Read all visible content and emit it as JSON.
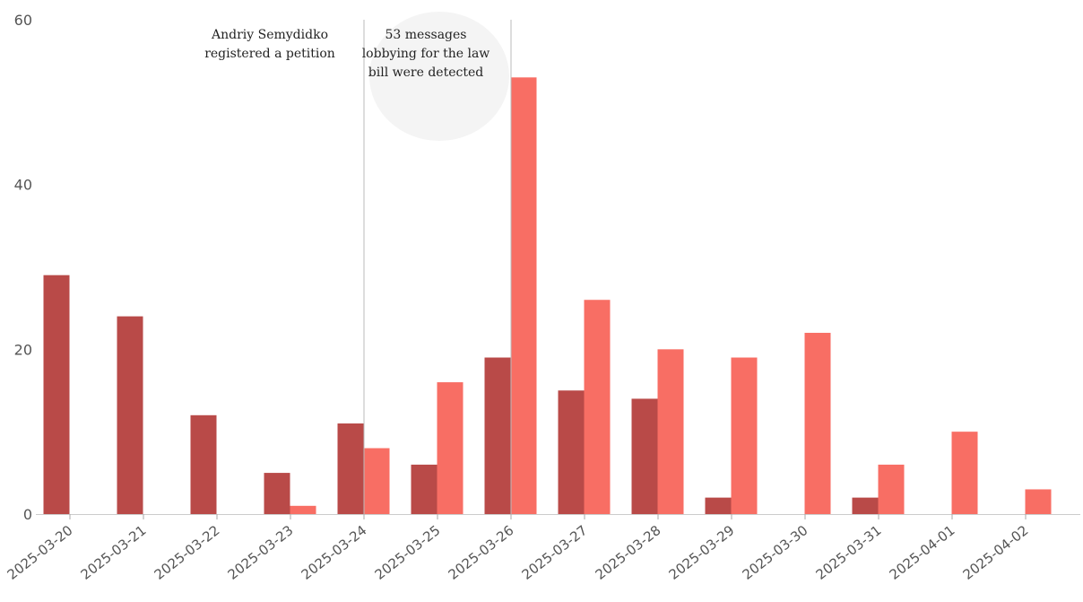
{
  "chart_data": {
    "type": "bar",
    "title": "",
    "xlabel": "",
    "ylabel": "",
    "ylim": [
      0,
      60
    ],
    "yticks": [
      0,
      20,
      40,
      60
    ],
    "grid": false,
    "legend": "none",
    "categories": [
      "2025-03-20",
      "2025-03-21",
      "2025-03-22",
      "2025-03-23",
      "2025-03-24",
      "2025-03-25",
      "2025-03-26",
      "2025-03-27",
      "2025-03-28",
      "2025-03-29",
      "2025-03-30",
      "2025-03-31",
      "2025-04-01",
      "2025-04-02"
    ],
    "series": [
      {
        "color": "#b94a48",
        "values": [
          29,
          24,
          12,
          5,
          11,
          6,
          19,
          15,
          14,
          2,
          0,
          2,
          0,
          0
        ]
      },
      {
        "color": "#f86e64",
        "values": [
          0,
          0,
          0,
          1,
          8,
          16,
          53,
          26,
          20,
          19,
          22,
          6,
          10,
          3
        ]
      }
    ],
    "annotations": [
      {
        "category": "2025-03-24",
        "lines": [
          "Andriy Semydidko",
          "registered a petition"
        ],
        "side": "left"
      },
      {
        "category": "2025-03-26",
        "lines": [
          "53 messages",
          "lobbying for the law",
          "bill were detected"
        ],
        "side": "left"
      }
    ]
  }
}
